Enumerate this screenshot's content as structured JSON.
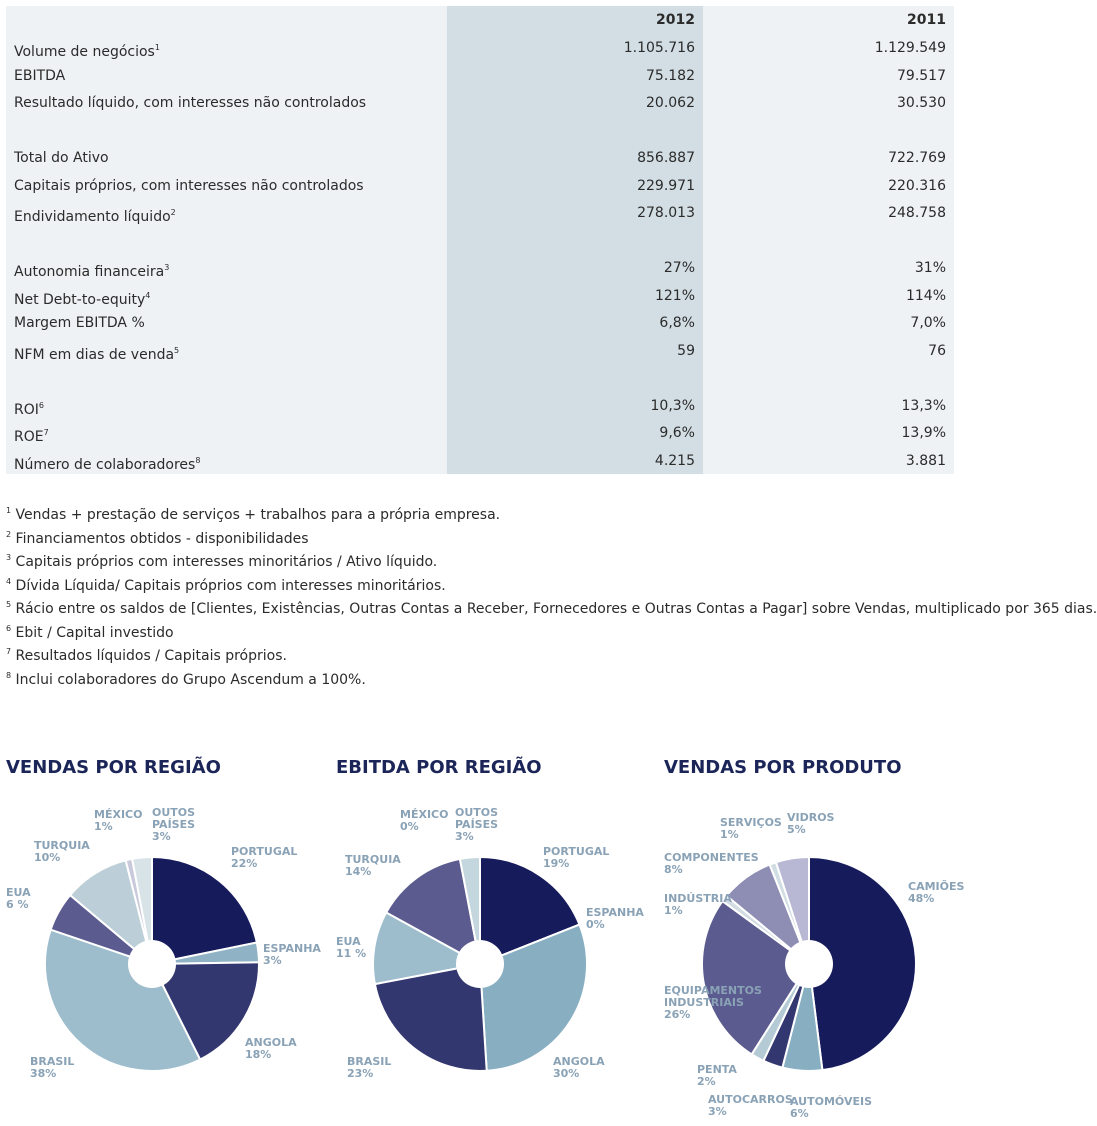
{
  "table": {
    "columns": [
      "2012",
      "2011"
    ],
    "groups": [
      {
        "rows": [
          {
            "label": "Volume de negócios",
            "note": "1",
            "values": [
              "1.105.716",
              "1.129.549"
            ]
          },
          {
            "label": "EBITDA",
            "values": [
              "75.182",
              "79.517"
            ]
          },
          {
            "label": "Resultado líquido, com interesses não controlados",
            "values": [
              "20.062",
              "30.530"
            ]
          }
        ]
      },
      {
        "rows": [
          {
            "label": "Total do Ativo",
            "values": [
              "856.887",
              "722.769"
            ]
          },
          {
            "label": "Capitais próprios, com interesses não controlados",
            "values": [
              "229.971",
              "220.316"
            ]
          },
          {
            "label": "Endividamento líquido",
            "note": "2",
            "values": [
              "278.013",
              "248.758"
            ]
          }
        ]
      },
      {
        "rows": [
          {
            "label": "Autonomia financeira",
            "note": "3",
            "values": [
              "27%",
              "31%"
            ]
          },
          {
            "label": "Net Debt-to-equity",
            "note": "4",
            "values": [
              "121%",
              "114%"
            ]
          },
          {
            "label": "Margem EBITDA %",
            "values": [
              "6,8%",
              "7,0%"
            ]
          },
          {
            "label": "NFM em dias de venda",
            "note": "5",
            "values": [
              "59",
              "76"
            ]
          }
        ]
      },
      {
        "rows": [
          {
            "label": "ROI",
            "note": "6",
            "values": [
              "10,3%",
              "13,3%"
            ]
          },
          {
            "label": "ROE",
            "note": "7",
            "values": [
              "9,6%",
              "13,9%"
            ]
          },
          {
            "label": "Número de colaboradores",
            "note": "8",
            "values": [
              "4.215",
              "3.881"
            ]
          }
        ]
      }
    ]
  },
  "footnotes": [
    {
      "number": "1",
      "text": "Vendas + prestação de serviços + trabalhos para a própria empresa."
    },
    {
      "number": "2",
      "text": "Financiamentos obtidos - disponibilidades"
    },
    {
      "number": "3",
      "text": "Capitais próprios com interesses minoritários / Ativo líquido."
    },
    {
      "number": "4",
      "text": "Dívida Líquida/ Capitais próprios com interesses minoritários."
    },
    {
      "number": "5",
      "text": "Rácio entre os saldos de [Clientes, Existências, Outras Contas a Receber, Fornecedores e Outras Contas a Pagar] sobre Vendas, multiplicado por 365 dias."
    },
    {
      "number": "6",
      "text": "Ebit / Capital investido"
    },
    {
      "number": "7",
      "text": "Resultados líquidos / Capitais próprios."
    },
    {
      "number": "8",
      "text": "Inclui colaboradores do Grupo Ascendum a 100%."
    }
  ],
  "chart_data": [
    {
      "type": "pie",
      "title": "VENDAS POR REGIÃO",
      "categories": [
        "PORTUGAL",
        "ESPANHA",
        "ANGOLA",
        "BRASIL",
        "EUA",
        "TURQUIA",
        "MÉXICO",
        "OUTOS PAÍSES"
      ],
      "values": [
        22,
        3,
        18,
        38,
        6,
        10,
        1,
        3
      ],
      "value_labels": [
        "22%",
        "3%",
        "18%",
        "38%",
        "6 %",
        "10%",
        "1%",
        "3%"
      ],
      "colors": [
        "#161b5c",
        "#8fb3c4",
        "#33376f",
        "#9dbdcd",
        "#5b5b8f",
        "#bccfd8",
        "#c9c9dc",
        "#d8e3e8"
      ]
    },
    {
      "type": "pie",
      "title": "EBITDA POR REGIÃO",
      "categories": [
        "PORTUGAL",
        "ESPANHA",
        "ANGOLA",
        "BRASIL",
        "EUA",
        "TURQUIA",
        "MÉXICO",
        "OUTOS PAÍSES"
      ],
      "values": [
        19,
        0,
        30,
        23,
        11,
        14,
        0,
        3
      ],
      "value_labels": [
        "19%",
        "0%",
        "30%",
        "23%",
        "11 %",
        "14%",
        "0%",
        "3%"
      ],
      "colors": [
        "#161b5c",
        "#8fb3c4",
        "#88afc1",
        "#33376f",
        "#9dbdcd",
        "#5b5b8f",
        "#c9c9dc",
        "#c4d6de"
      ]
    },
    {
      "type": "pie",
      "title": "VENDAS POR PRODUTO",
      "categories": [
        "CAMIÕES",
        "AUTOMÓVEIS",
        "AUTOCARROS",
        "PENTA",
        "EQUIPAMENTOS INDUSTRIAIS",
        "INDÚSTRIA",
        "COMPONENTES",
        "SERVIÇOS",
        "VIDROS"
      ],
      "values": [
        48,
        6,
        3,
        2,
        26,
        1,
        8,
        1,
        5
      ],
      "value_labels": [
        "48%",
        "6%",
        "3%",
        "2%",
        "26%",
        "1%",
        "8%",
        "1%",
        "5%"
      ],
      "colors": [
        "#161b5c",
        "#88afc1",
        "#33376f",
        "#b4cbd6",
        "#5b5b8f",
        "#d2dde3",
        "#8e8eb5",
        "#d0dde3",
        "#b8b8d4"
      ]
    }
  ]
}
